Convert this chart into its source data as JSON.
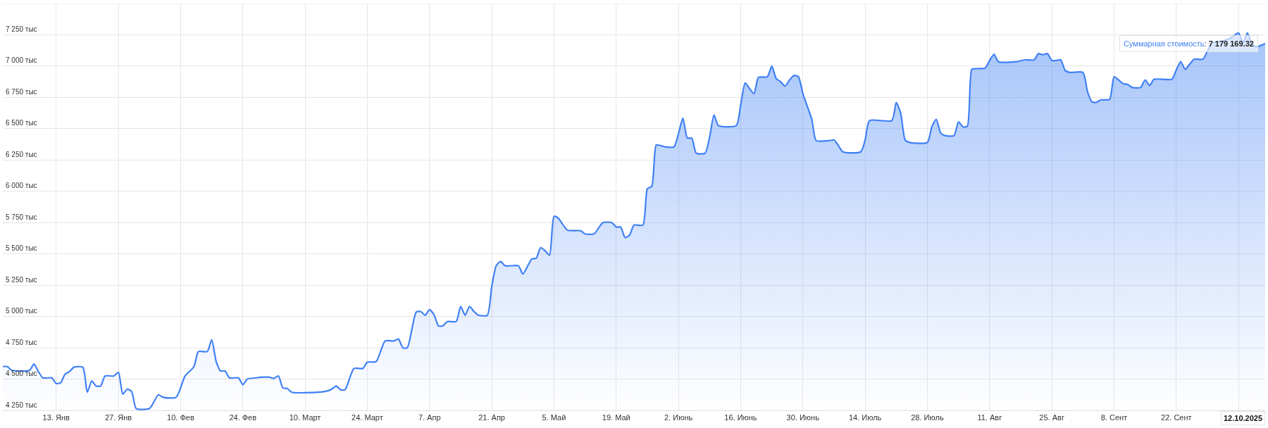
{
  "chart_data": {
    "type": "area",
    "color": "#3f80f4",
    "x": [
      "2025-01-01",
      "2025-01-02",
      "2025-01-03",
      "2025-01-07",
      "2025-01-08",
      "2025-01-09",
      "2025-01-10",
      "2025-01-12",
      "2025-01-13",
      "2025-01-14",
      "2025-01-15",
      "2025-01-16",
      "2025-01-17",
      "2025-01-19",
      "2025-01-20",
      "2025-01-21",
      "2025-01-22",
      "2025-01-23",
      "2025-01-24",
      "2025-01-26",
      "2025-01-27",
      "2025-01-28",
      "2025-01-29",
      "2025-01-30",
      "2025-01-31",
      "2025-02-03",
      "2025-02-05",
      "2025-02-06",
      "2025-02-09",
      "2025-02-11",
      "2025-02-13",
      "2025-02-14",
      "2025-02-16",
      "2025-02-17",
      "2025-02-18",
      "2025-02-19",
      "2025-02-20",
      "2025-02-21",
      "2025-02-23",
      "2025-02-24",
      "2025-02-25",
      "2025-02-27",
      "2025-02-28",
      "2025-03-02",
      "2025-03-03",
      "2025-03-04",
      "2025-03-05",
      "2025-03-06",
      "2025-03-07",
      "2025-03-13",
      "2025-03-15",
      "2025-03-16",
      "2025-03-17",
      "2025-03-18",
      "2025-03-19",
      "2025-03-21",
      "2025-03-23",
      "2025-03-24",
      "2025-03-26",
      "2025-03-28",
      "2025-03-30",
      "2025-03-31",
      "2025-04-01",
      "2025-04-02",
      "2025-04-04",
      "2025-04-05",
      "2025-04-06",
      "2025-04-07",
      "2025-04-08",
      "2025-04-09",
      "2025-04-10",
      "2025-04-11",
      "2025-04-13",
      "2025-04-14",
      "2025-04-15",
      "2025-04-16",
      "2025-04-17",
      "2025-04-18",
      "2025-04-20",
      "2025-04-21",
      "2025-04-22",
      "2025-04-23",
      "2025-04-24",
      "2025-04-27",
      "2025-04-28",
      "2025-04-30",
      "2025-05-01",
      "2025-05-02",
      "2025-05-03",
      "2025-05-04",
      "2025-05-05",
      "2025-05-06",
      "2025-05-08",
      "2025-05-11",
      "2025-05-12",
      "2025-05-14",
      "2025-05-16",
      "2025-05-18",
      "2025-05-19",
      "2025-05-20",
      "2025-05-21",
      "2025-05-22",
      "2025-05-23",
      "2025-05-25",
      "2025-05-26",
      "2025-05-27",
      "2025-05-28",
      "2025-05-29",
      "2025-05-30",
      "2025-06-01",
      "2025-06-02",
      "2025-06-03",
      "2025-06-04",
      "2025-06-05",
      "2025-06-06",
      "2025-06-08",
      "2025-06-09",
      "2025-06-10",
      "2025-06-11",
      "2025-06-15",
      "2025-06-16",
      "2025-06-17",
      "2025-06-18",
      "2025-06-19",
      "2025-06-20",
      "2025-06-22",
      "2025-06-23",
      "2025-06-24",
      "2025-06-25",
      "2025-06-26",
      "2025-06-27",
      "2025-06-28",
      "2025-06-29",
      "2025-06-30",
      "2025-07-02",
      "2025-07-03",
      "2025-07-06",
      "2025-07-07",
      "2025-07-08",
      "2025-07-09",
      "2025-07-13",
      "2025-07-14",
      "2025-07-15",
      "2025-07-20",
      "2025-07-21",
      "2025-07-22",
      "2025-07-23",
      "2025-07-24",
      "2025-07-28",
      "2025-07-29",
      "2025-07-30",
      "2025-07-31",
      "2025-08-01",
      "2025-08-03",
      "2025-08-04",
      "2025-08-05",
      "2025-08-06",
      "2025-08-07",
      "2025-08-08",
      "2025-08-10",
      "2025-08-11",
      "2025-08-12",
      "2025-08-13",
      "2025-08-17",
      "2025-08-19",
      "2025-08-21",
      "2025-08-22",
      "2025-08-23",
      "2025-08-24",
      "2025-08-25",
      "2025-08-26",
      "2025-08-27",
      "2025-08-28",
      "2025-08-29",
      "2025-09-01",
      "2025-09-02",
      "2025-09-03",
      "2025-09-04",
      "2025-09-05",
      "2025-09-07",
      "2025-09-08",
      "2025-09-09",
      "2025-09-10",
      "2025-09-11",
      "2025-09-12",
      "2025-09-14",
      "2025-09-15",
      "2025-09-16",
      "2025-09-17",
      "2025-09-21",
      "2025-09-22",
      "2025-09-23",
      "2025-09-24",
      "2025-09-25",
      "2025-09-26",
      "2025-09-28",
      "2025-09-29",
      "2025-09-30",
      "2025-10-02",
      "2025-10-04",
      "2025-10-06",
      "2025-10-07",
      "2025-10-08",
      "2025-10-09",
      "2025-10-10",
      "2025-10-12"
    ],
    "values": [
      4600,
      4600,
      4570,
      4570,
      4620,
      4560,
      4510,
      4510,
      4465,
      4470,
      4540,
      4560,
      4595,
      4595,
      4395,
      4485,
      4445,
      4445,
      4525,
      4525,
      4555,
      4380,
      4420,
      4400,
      4265,
      4265,
      4375,
      4355,
      4355,
      4525,
      4600,
      4720,
      4720,
      4815,
      4640,
      4565,
      4565,
      4510,
      4510,
      4455,
      4500,
      4510,
      4515,
      4515,
      4505,
      4525,
      4430,
      4425,
      4395,
      4395,
      4405,
      4420,
      4445,
      4415,
      4415,
      4585,
      4585,
      4635,
      4640,
      4805,
      4805,
      4820,
      4750,
      4750,
      5035,
      5040,
      5010,
      5055,
      5015,
      4925,
      4925,
      4960,
      4960,
      5080,
      5010,
      5080,
      5040,
      5010,
      5010,
      5240,
      5405,
      5440,
      5405,
      5405,
      5340,
      5460,
      5465,
      5550,
      5525,
      5490,
      5800,
      5785,
      5690,
      5685,
      5660,
      5660,
      5750,
      5750,
      5715,
      5715,
      5630,
      5650,
      5730,
      5730,
      6020,
      6040,
      6370,
      6365,
      6355,
      6355,
      6460,
      6585,
      6425,
      6425,
      6305,
      6305,
      6430,
      6610,
      6525,
      6525,
      6690,
      6865,
      6820,
      6780,
      6910,
      6915,
      7000,
      6900,
      6875,
      6840,
      6890,
      6925,
      6915,
      6780,
      6575,
      6405,
      6405,
      6410,
      6365,
      6315,
      6315,
      6410,
      6565,
      6565,
      6710,
      6625,
      6410,
      6390,
      6390,
      6515,
      6575,
      6465,
      6445,
      6445,
      6555,
      6515,
      6520,
      6975,
      6980,
      6985,
      7045,
      7095,
      7035,
      7035,
      7050,
      7050,
      7100,
      7090,
      7100,
      7045,
      7045,
      7050,
      6965,
      6950,
      6950,
      6800,
      6715,
      6710,
      6730,
      6735,
      6915,
      6890,
      6860,
      6855,
      6830,
      6830,
      6890,
      6845,
      6895,
      6895,
      6970,
      7035,
      6975,
      7015,
      7055,
      7055,
      7120,
      7185,
      7195,
      7220,
      7265,
      7185,
      7265,
      7175,
      7155,
      7179.16932
    ],
    "xlim": [
      "2025-01-01",
      "2025-10-12"
    ],
    "xticks": [
      {
        "value": "2025-01-13",
        "label": "13. Янв"
      },
      {
        "value": "2025-01-27",
        "label": "27. Янв"
      },
      {
        "value": "2025-02-10",
        "label": "10. Фев"
      },
      {
        "value": "2025-02-24",
        "label": "24. Фев"
      },
      {
        "value": "2025-03-10",
        "label": "10. Март"
      },
      {
        "value": "2025-03-24",
        "label": "24. Март"
      },
      {
        "value": "2025-04-07",
        "label": "7. Апр"
      },
      {
        "value": "2025-04-21",
        "label": "21. Апр"
      },
      {
        "value": "2025-05-05",
        "label": "5. Май"
      },
      {
        "value": "2025-05-19",
        "label": "19. Май"
      },
      {
        "value": "2025-06-02",
        "label": "2. Июнь"
      },
      {
        "value": "2025-06-16",
        "label": "16. Июнь"
      },
      {
        "value": "2025-06-30",
        "label": "30. Июнь"
      },
      {
        "value": "2025-07-14",
        "label": "14. Июль"
      },
      {
        "value": "2025-07-28",
        "label": "28. Июль"
      },
      {
        "value": "2025-08-11",
        "label": "11. Авг"
      },
      {
        "value": "2025-08-25",
        "label": "25. Авг"
      },
      {
        "value": "2025-09-08",
        "label": "8. Сент"
      },
      {
        "value": "2025-09-22",
        "label": "22. Сент"
      },
      {
        "value": "2025-10-06",
        "label": null
      }
    ],
    "ylim": [
      4250,
      7500
    ],
    "yticks": [
      {
        "value": 4250,
        "label": "4 250 тыс"
      },
      {
        "value": 4500,
        "label": "4 500 тыс"
      },
      {
        "value": 4750,
        "label": "4 750 тыс"
      },
      {
        "value": 5000,
        "label": "5 000 тыс"
      },
      {
        "value": 5250,
        "label": "5 250 тыс"
      },
      {
        "value": 5500,
        "label": "5 500 тыс"
      },
      {
        "value": 5750,
        "label": "5 750 тыс"
      },
      {
        "value": 6000,
        "label": "6 000 тыс"
      },
      {
        "value": 6250,
        "label": "6 250 тыс"
      },
      {
        "value": 6500,
        "label": "6 500 тыс"
      },
      {
        "value": 6750,
        "label": "6 750 тыс"
      },
      {
        "value": 7000,
        "label": "7 000 тыс"
      },
      {
        "value": 7250,
        "label": "7 250 тыс"
      },
      {
        "value": 7500,
        "label": null
      }
    ],
    "grid": true,
    "annotations": [
      {
        "text": "Суммарная стоимость: 7 179 169.32",
        "x": "2025-10-12",
        "y": 7179.16932
      },
      "12.10.2025"
    ]
  }
}
